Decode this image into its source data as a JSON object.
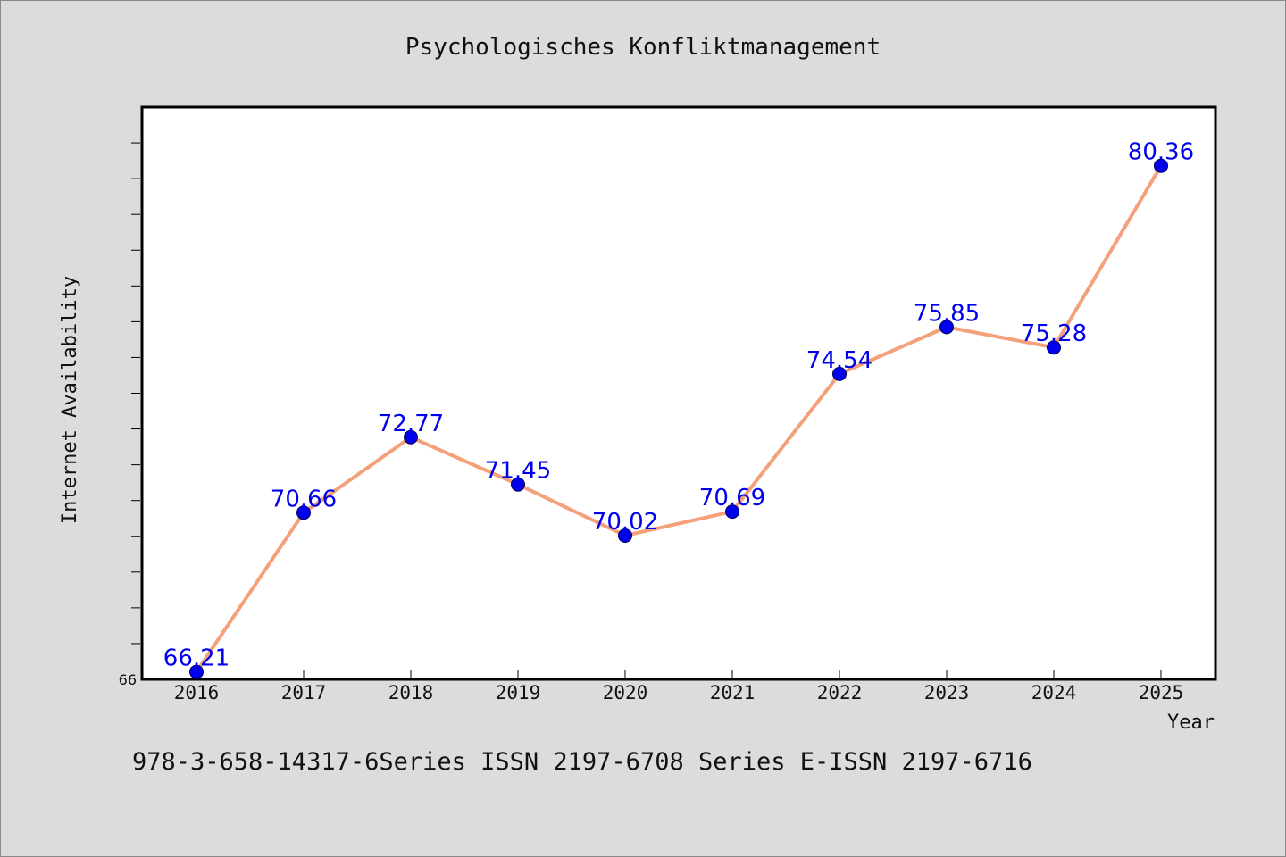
{
  "chart_data": {
    "type": "line",
    "title": "Psychologisches Konfliktmanagement",
    "xlabel": "Year",
    "ylabel": "Internet Availability",
    "x": [
      "2016",
      "2017",
      "2018",
      "2019",
      "2020",
      "2021",
      "2022",
      "2023",
      "2024",
      "2025"
    ],
    "series": [
      {
        "values": [
          66.21,
          70.66,
          72.77,
          71.45,
          70.02,
          70.69,
          74.54,
          75.85,
          75.28,
          80.36
        ],
        "labels": [
          "66.21",
          "70.66",
          "72.77",
          "71.45",
          "70.02",
          "70.69",
          "74.54",
          "75.85",
          "75.28",
          "80.36"
        ],
        "line_color": "#f4a07a",
        "marker_color": "#0000ee",
        "label_color": "#0000ee"
      }
    ],
    "ylim": [
      66,
      82
    ],
    "y_ticks": [
      {
        "value": 66,
        "label": "66"
      }
    ],
    "y_minor_step": 1,
    "grid": false,
    "legend": "none",
    "footer": "978-3-658-14317-6Series ISSN 2197-6708 Series E-ISSN 2197-6716"
  }
}
